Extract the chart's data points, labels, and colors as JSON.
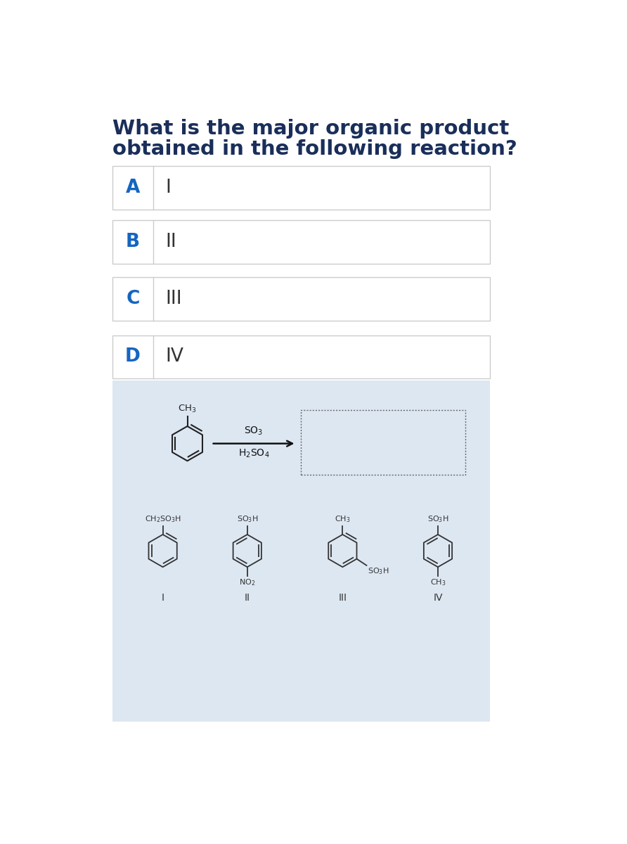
{
  "title_line1": "What is the major organic product",
  "title_line2": "obtained in the following reaction?",
  "title_color": "#1a2e5a",
  "title_fontsize": 21,
  "options": [
    {
      "letter": "A",
      "roman": "I"
    },
    {
      "letter": "B",
      "roman": "II"
    },
    {
      "letter": "C",
      "roman": "III"
    },
    {
      "letter": "D",
      "roman": "IV"
    }
  ],
  "letter_color": "#1565c0",
  "roman_color": "#333333",
  "option_fontsize": 19,
  "bg_color": "#dde7f2",
  "white": "#ffffff",
  "box_border": "#cccccc",
  "mol_color": "#222222",
  "choice_color": "#333333"
}
